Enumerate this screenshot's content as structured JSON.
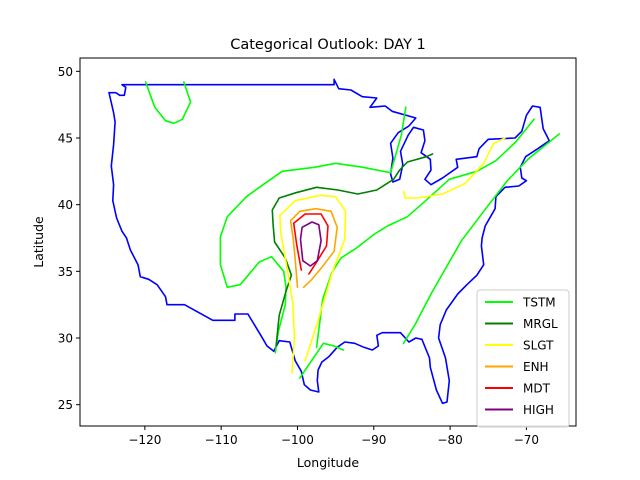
{
  "chart_data": {
    "type": "line",
    "title": "Categorical Outlook: DAY 1",
    "xlabel": "Longitude",
    "ylabel": "Latitude",
    "xlim": [
      -128.5,
      -63.5
    ],
    "ylim": [
      23.4,
      51.0
    ],
    "xticks": [
      -120,
      -110,
      -100,
      -90,
      -80,
      -70
    ],
    "xtick_labels": [
      "−120",
      "−110",
      "−100",
      "−90",
      "−80",
      "−70"
    ],
    "yticks": [
      25,
      30,
      35,
      40,
      45,
      50
    ],
    "ytick_labels": [
      "25",
      "30",
      "35",
      "40",
      "45",
      "50"
    ],
    "grid": false,
    "legend_position": "lower-right",
    "colors": {
      "border": "#0000ff",
      "TSTM": "#00ff00",
      "MRGL": "#008000",
      "SLGT": "#ffff00",
      "ENH": "#ffa500",
      "MDT": "#ff0000",
      "HIGH": "#800080"
    },
    "border_outline": [
      [
        -123.8,
        48.4
      ],
      [
        -123.3,
        48.2
      ],
      [
        -122.7,
        48.2
      ],
      [
        -122.5,
        48.8
      ],
      [
        -123.0,
        49.0
      ],
      [
        -110,
        49.0
      ],
      [
        -95.2,
        49.0
      ],
      [
        -95.2,
        49.4
      ],
      [
        -94.6,
        48.7
      ],
      [
        -93.0,
        48.6
      ],
      [
        -91.5,
        48.1
      ],
      [
        -89.6,
        48.0
      ],
      [
        -90.5,
        47.3
      ],
      [
        -88.5,
        47.4
      ],
      [
        -87.6,
        47.0
      ],
      [
        -84.5,
        46.5
      ],
      [
        -85.4,
        45.9
      ],
      [
        -86.8,
        45.4
      ],
      [
        -87.8,
        44.6
      ],
      [
        -87.5,
        43.5
      ],
      [
        -87.8,
        42.3
      ],
      [
        -87.5,
        41.7
      ],
      [
        -86.6,
        41.9
      ],
      [
        -86.2,
        43.0
      ],
      [
        -86.5,
        44.0
      ],
      [
        -85.5,
        45.2
      ],
      [
        -84.8,
        45.8
      ],
      [
        -83.5,
        45.6
      ],
      [
        -83.3,
        44.8
      ],
      [
        -83.8,
        43.9
      ],
      [
        -82.6,
        43.4
      ],
      [
        -82.5,
        42.6
      ],
      [
        -83.3,
        41.9
      ],
      [
        -82.5,
        41.5
      ],
      [
        -81.0,
        42.0
      ],
      [
        -79.0,
        42.8
      ],
      [
        -79.2,
        43.4
      ],
      [
        -76.5,
        43.6
      ],
      [
        -76.2,
        44.2
      ],
      [
        -75.0,
        44.9
      ],
      [
        -71.5,
        45.0
      ],
      [
        -70.6,
        45.5
      ],
      [
        -70.0,
        46.7
      ],
      [
        -69.2,
        47.4
      ],
      [
        -68.2,
        47.3
      ],
      [
        -67.8,
        45.7
      ],
      [
        -67.0,
        44.8
      ],
      [
        -68.5,
        44.2
      ],
      [
        -70.1,
        43.6
      ],
      [
        -70.8,
        42.8
      ],
      [
        -70.6,
        42.0
      ],
      [
        -70.0,
        41.8
      ],
      [
        -71.0,
        41.4
      ],
      [
        -72.8,
        41.3
      ],
      [
        -74.0,
        40.6
      ],
      [
        -74.1,
        39.7
      ],
      [
        -74.9,
        38.9
      ],
      [
        -75.4,
        38.4
      ],
      [
        -75.8,
        37.5
      ],
      [
        -75.9,
        36.9
      ],
      [
        -75.6,
        35.5
      ],
      [
        -76.5,
        34.7
      ],
      [
        -77.8,
        34.0
      ],
      [
        -79.0,
        33.3
      ],
      [
        -80.5,
        32.1
      ],
      [
        -81.3,
        31.0
      ],
      [
        -81.5,
        30.0
      ],
      [
        -80.6,
        28.5
      ],
      [
        -80.1,
        26.8
      ],
      [
        -80.4,
        25.2
      ],
      [
        -81.0,
        25.1
      ],
      [
        -81.8,
        26.1
      ],
      [
        -82.6,
        27.8
      ],
      [
        -82.7,
        28.5
      ],
      [
        -83.7,
        29.9
      ],
      [
        -84.5,
        30.0
      ],
      [
        -85.4,
        29.7
      ],
      [
        -86.5,
        30.4
      ],
      [
        -88.1,
        30.4
      ],
      [
        -88.9,
        30.4
      ],
      [
        -89.6,
        30.2
      ],
      [
        -89.4,
        29.4
      ],
      [
        -90.2,
        29.1
      ],
      [
        -91.3,
        29.3
      ],
      [
        -92.5,
        29.6
      ],
      [
        -93.8,
        29.7
      ],
      [
        -94.8,
        29.3
      ],
      [
        -95.9,
        28.6
      ],
      [
        -96.8,
        28.2
      ],
      [
        -97.3,
        27.6
      ],
      [
        -97.4,
        26.8
      ],
      [
        -97.2,
        25.95
      ],
      [
        -98.3,
        26.1
      ],
      [
        -99.1,
        26.5
      ],
      [
        -99.5,
        27.5
      ],
      [
        -100.3,
        28.3
      ],
      [
        -101.0,
        29.7
      ],
      [
        -102.4,
        29.8
      ],
      [
        -103.1,
        29.0
      ],
      [
        -104.0,
        29.4
      ],
      [
        -104.7,
        30.1
      ],
      [
        -106.5,
        31.8
      ],
      [
        -108.2,
        31.8
      ],
      [
        -108.2,
        31.33
      ],
      [
        -111.1,
        31.33
      ],
      [
        -114.8,
        32.5
      ],
      [
        -117.1,
        32.5
      ],
      [
        -117.3,
        33.1
      ],
      [
        -118.4,
        34.0
      ],
      [
        -119.5,
        34.4
      ],
      [
        -120.6,
        34.6
      ],
      [
        -120.9,
        35.5
      ],
      [
        -121.9,
        36.6
      ],
      [
        -122.4,
        37.5
      ],
      [
        -123.0,
        38.0
      ],
      [
        -123.7,
        39.0
      ],
      [
        -124.2,
        40.3
      ],
      [
        -124.1,
        41.5
      ],
      [
        -124.4,
        42.9
      ],
      [
        -124.1,
        44.5
      ],
      [
        -123.9,
        46.2
      ],
      [
        -124.1,
        46.9
      ],
      [
        -124.7,
        48.4
      ],
      [
        -123.8,
        48.4
      ]
    ],
    "series": [
      {
        "name": "TSTM",
        "segments": [
          [
            [
              -119.9,
              49.2
            ],
            [
              -118.7,
              47.3
            ],
            [
              -117.3,
              46.3
            ],
            [
              -116.2,
              46.1
            ],
            [
              -115.1,
              46.4
            ],
            [
              -114.0,
              47.7
            ],
            [
              -114.9,
              49.2
            ]
          ],
          [
            [
              -99.7,
              27.0
            ],
            [
              -97.8,
              28.6
            ],
            [
              -96.6,
              29.6
            ],
            [
              -95.2,
              29.4
            ],
            [
              -94.0,
              29.1
            ]
          ],
          [
            [
              -97.5,
              29.3
            ],
            [
              -96.7,
              32.9
            ],
            [
              -95.5,
              34.9
            ],
            [
              -94.3,
              36.0
            ],
            [
              -92.4,
              36.7
            ],
            [
              -89.9,
              37.8
            ],
            [
              -88.2,
              38.4
            ],
            [
              -85.6,
              39.1
            ],
            [
              -83.0,
              40.4
            ],
            [
              -80.1,
              41.9
            ],
            [
              -76.5,
              42.5
            ],
            [
              -74.0,
              43.3
            ],
            [
              -71.4,
              44.7
            ],
            [
              -69.0,
              46.4
            ]
          ],
          [
            [
              -86.1,
              29.6
            ],
            [
              -84.6,
              31.0
            ],
            [
              -82.5,
              33.3
            ],
            [
              -80.4,
              35.4
            ],
            [
              -78.5,
              37.3
            ],
            [
              -75.6,
              39.5
            ],
            [
              -72.5,
              41.8
            ],
            [
              -69.8,
              43.4
            ],
            [
              -65.7,
              45.3
            ]
          ],
          [
            [
              -102.9,
              28.9
            ],
            [
              -102.5,
              30.5
            ],
            [
              -101.6,
              32.5
            ],
            [
              -101.5,
              33.8
            ],
            [
              -101.8,
              35.0
            ],
            [
              -103.4,
              36.1
            ],
            [
              -105.0,
              35.7
            ],
            [
              -107.5,
              34.0
            ],
            [
              -109.2,
              33.8
            ],
            [
              -110.1,
              35.5
            ],
            [
              -110.1,
              37.6
            ],
            [
              -109.2,
              39.1
            ],
            [
              -106.7,
              40.6
            ],
            [
              -104.5,
              41.5
            ],
            [
              -102.0,
              42.5
            ],
            [
              -97.8,
              42.8
            ],
            [
              -95.0,
              43.1
            ],
            [
              -91.4,
              42.8
            ],
            [
              -87.8,
              42.4
            ],
            [
              -86.4,
              45.2
            ],
            [
              -85.8,
              47.3
            ]
          ]
        ]
      },
      {
        "name": "MRGL",
        "segments": [
          [
            [
              -102.8,
              29.4
            ],
            [
              -102.4,
              31.7
            ],
            [
              -101.5,
              33.5
            ],
            [
              -100.8,
              34.7
            ],
            [
              -101.6,
              36.0
            ],
            [
              -103.0,
              37.2
            ],
            [
              -103.2,
              38.5
            ],
            [
              -103.3,
              39.6
            ],
            [
              -102.4,
              40.5
            ],
            [
              -100.2,
              40.9
            ],
            [
              -97.5,
              41.3
            ],
            [
              -94.7,
              41.1
            ],
            [
              -92.1,
              40.8
            ],
            [
              -89.6,
              41.1
            ],
            [
              -87.4,
              41.9
            ],
            [
              -86.6,
              42.6
            ],
            [
              -85.6,
              43.2
            ],
            [
              -83.1,
              43.6
            ],
            [
              -82.3,
              43.8
            ]
          ]
        ]
      },
      {
        "name": "SLGT",
        "segments": [
          [
            [
              -100.7,
              27.4
            ],
            [
              -100.4,
              30.1
            ],
            [
              -100.6,
              32.6
            ],
            [
              -101.6,
              36.0
            ],
            [
              -102.2,
              37.9
            ],
            [
              -102.3,
              39.2
            ],
            [
              -100.3,
              40.3
            ],
            [
              -97.0,
              40.7
            ],
            [
              -95.0,
              40.6
            ],
            [
              -93.7,
              39.5
            ],
            [
              -93.8,
              37.4
            ],
            [
              -95.4,
              35.0
            ],
            [
              -97.3,
              31.3
            ],
            [
              -99.0,
              28.3
            ]
          ],
          [
            [
              -86.1,
              41.0
            ],
            [
              -85.9,
              40.5
            ],
            [
              -84.2,
              40.5
            ],
            [
              -81.0,
              40.8
            ],
            [
              -78.0,
              41.6
            ],
            [
              -75.6,
              43.1
            ],
            [
              -74.3,
              44.6
            ],
            [
              -72.8,
              45.0
            ]
          ]
        ]
      },
      {
        "name": "ENH",
        "segments": [
          [
            [
              -100.0,
              33.8
            ],
            [
              -100.3,
              35.9
            ],
            [
              -100.6,
              37.6
            ],
            [
              -100.9,
              38.8
            ],
            [
              -99.7,
              39.5
            ],
            [
              -97.6,
              39.7
            ],
            [
              -95.6,
              39.5
            ],
            [
              -94.8,
              38.3
            ],
            [
              -95.2,
              36.5
            ],
            [
              -96.8,
              35.3
            ],
            [
              -98.1,
              34.4
            ],
            [
              -99.2,
              33.8
            ]
          ]
        ]
      },
      {
        "name": "MDT",
        "segments": [
          [
            [
              -99.5,
              35.1
            ],
            [
              -100.1,
              37.0
            ],
            [
              -100.5,
              38.6
            ],
            [
              -99.0,
              39.3
            ],
            [
              -96.9,
              39.3
            ],
            [
              -96.0,
              38.4
            ],
            [
              -96.2,
              36.9
            ],
            [
              -97.6,
              35.6
            ],
            [
              -98.5,
              34.8
            ]
          ]
        ]
      },
      {
        "name": "HIGH",
        "segments": [
          [
            [
              -99.3,
              35.8
            ],
            [
              -99.6,
              37.4
            ],
            [
              -99.4,
              38.3
            ],
            [
              -98.1,
              38.7
            ],
            [
              -97.2,
              38.5
            ],
            [
              -96.9,
              37.3
            ],
            [
              -97.4,
              35.8
            ],
            [
              -98.3,
              35.4
            ],
            [
              -99.3,
              35.8
            ]
          ]
        ]
      }
    ]
  }
}
